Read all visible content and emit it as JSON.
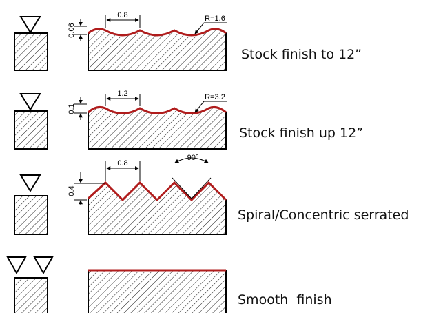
{
  "rows": [
    {
      "label": "Stock finish to 12”",
      "pitch": "0.8",
      "depth": "0.06",
      "radius": "R=1.6"
    },
    {
      "label": "Stock finish up 12”",
      "pitch": "1.2",
      "depth": "0.1",
      "radius": "R=3.2"
    },
    {
      "label": "Spiral/Concentric serrated",
      "pitch": "0.8",
      "depth": "0.4",
      "angle": "90°"
    },
    {
      "label": "Smooth  finish"
    }
  ],
  "colors": {
    "profile": "#b01c1c",
    "line": "#000000"
  }
}
